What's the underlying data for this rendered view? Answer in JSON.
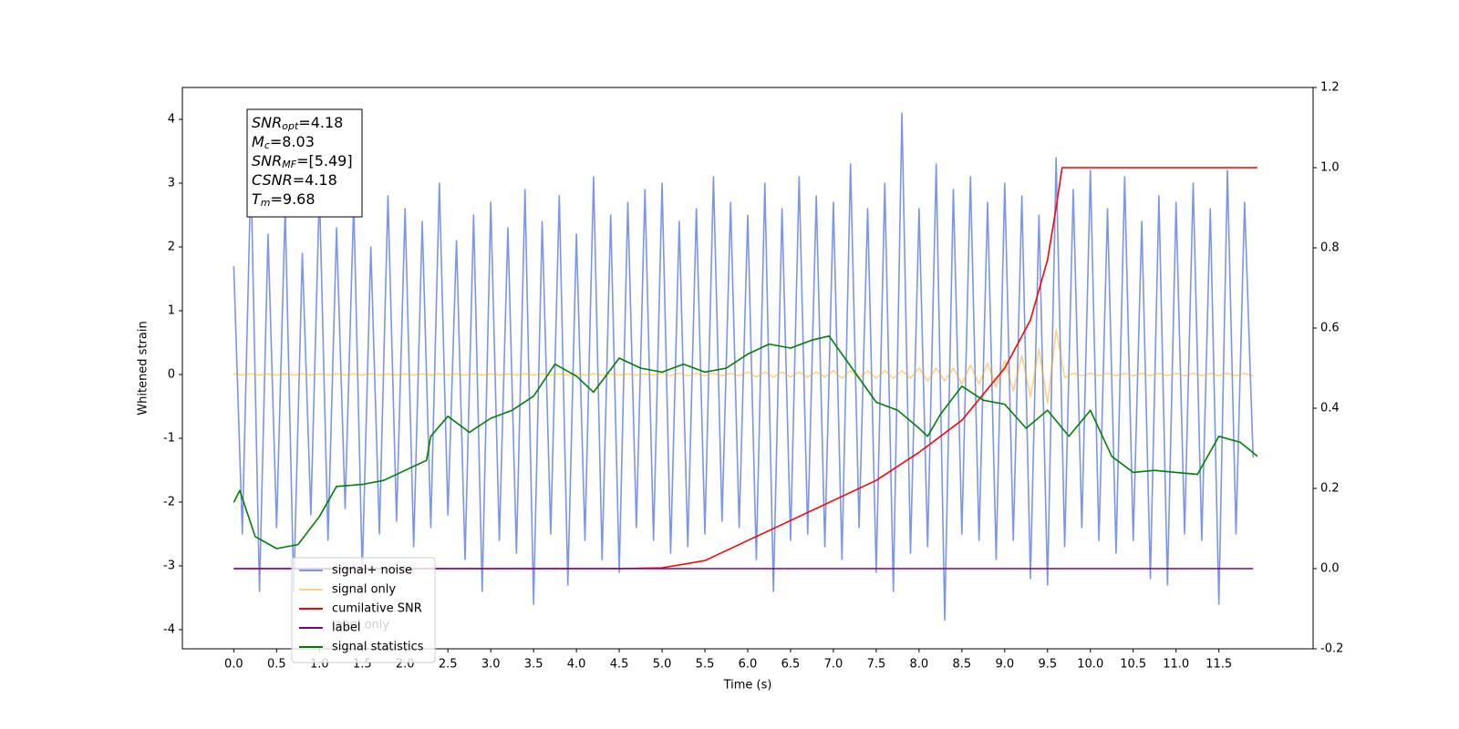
{
  "chart_data": {
    "type": "line",
    "xlabel": "Time (s)",
    "ylabel": "Whitened strain",
    "xlim": [
      -0.6,
      12.6
    ],
    "ylim": [
      -4.3,
      4.5
    ],
    "y2lim": [
      -0.2,
      1.2
    ],
    "xticks": [
      {
        "value": 0,
        "label": "0.0"
      },
      0.5,
      {
        "value": 1,
        "label": "1.0"
      },
      1.5,
      {
        "value": 2,
        "label": "2.0"
      },
      2.5,
      {
        "value": 3,
        "label": "3.0"
      },
      3.5,
      {
        "value": 4,
        "label": "4.0"
      },
      4.5,
      {
        "value": 5,
        "label": "5.0"
      },
      5.5,
      {
        "value": 6,
        "label": "6.0"
      },
      6.5,
      {
        "value": 7,
        "label": "7.0"
      },
      7.5,
      {
        "value": 8,
        "label": "8.0"
      },
      8.5,
      {
        "value": 9,
        "label": "9.0"
      },
      9.5,
      {
        "value": 10,
        "label": "10.0"
      },
      10.5,
      {
        "value": 11,
        "label": "11.0"
      },
      11.5
    ],
    "yticks": [
      -4,
      -3,
      -2,
      -1,
      0,
      1,
      2,
      3,
      4
    ],
    "y2ticks": [
      -0.2,
      {
        "value": 0,
        "label": "0.0"
      },
      0.2,
      0.4,
      0.6,
      0.8,
      {
        "value": 1,
        "label": "1.0"
      },
      1.2
    ],
    "x": [
      0,
      0.1,
      0.2,
      0.3,
      0.4,
      0.5,
      0.6,
      0.7,
      0.8,
      0.9,
      1,
      1.1,
      1.2,
      1.3,
      1.4,
      1.5,
      1.6,
      1.7,
      1.8,
      1.9,
      2,
      2.1,
      2.2,
      2.3,
      2.4,
      2.5,
      2.6,
      2.7,
      2.8,
      2.9,
      3,
      3.1,
      3.2,
      3.3,
      3.4,
      3.5,
      3.6,
      3.7,
      3.8,
      3.9,
      4,
      4.1,
      4.2,
      4.3,
      4.4,
      4.5,
      4.6,
      4.7,
      4.8,
      4.9,
      5,
      5.1,
      5.2,
      5.3,
      5.4,
      5.5,
      5.6,
      5.7,
      5.8,
      5.9,
      6,
      6.1,
      6.2,
      6.3,
      6.4,
      6.5,
      6.6,
      6.7,
      6.8,
      6.9,
      7,
      7.1,
      7.2,
      7.3,
      7.4,
      7.5,
      7.6,
      7.7,
      7.8,
      7.9,
      8,
      8.1,
      8.2,
      8.3,
      8.4,
      8.5,
      8.6,
      8.7,
      8.8,
      8.9,
      9,
      9.1,
      9.2,
      9.3,
      9.4,
      9.5,
      9.6,
      9.7,
      9.8,
      9.9,
      10,
      10.1,
      10.2,
      10.3,
      10.4,
      10.5,
      10.6,
      10.7,
      10.8,
      10.9,
      11,
      11.1,
      11.2,
      11.3,
      11.4,
      11.5,
      11.6,
      11.7,
      11.8,
      11.9
    ],
    "series": [
      {
        "name": "signal+ noise",
        "color": "#4169e1",
        "alpha": 0.7,
        "values": [
          1.7,
          -2.5,
          3.2,
          -3.4,
          2.2,
          -2.4,
          2.6,
          -3.4,
          1.9,
          -2.2,
          2.9,
          -2.6,
          2.3,
          -2.1,
          2.7,
          -3.1,
          2.0,
          -2.5,
          2.8,
          -2.3,
          2.6,
          -2.7,
          2.4,
          -2.4,
          3.0,
          -2.2,
          2.1,
          -2.9,
          2.5,
          -3.4,
          2.7,
          -2.6,
          2.3,
          -2.8,
          2.9,
          -3.6,
          2.4,
          -2.5,
          2.8,
          -3.3,
          2.2,
          -2.6,
          3.1,
          -2.9,
          2.5,
          -3.1,
          2.7,
          -2.4,
          2.9,
          -2.6,
          3.0,
          -2.8,
          2.4,
          -2.7,
          2.6,
          -2.5,
          3.1,
          -2.3,
          2.7,
          -2.4,
          2.5,
          -2.9,
          3.0,
          -3.4,
          2.6,
          -2.6,
          3.1,
          -2.5,
          2.8,
          -2.7,
          2.7,
          -2.9,
          3.3,
          -2.4,
          2.6,
          -3.1,
          3.0,
          -3.4,
          4.1,
          -2.8,
          2.6,
          -2.7,
          3.3,
          -3.85,
          2.9,
          -2.5,
          3.1,
          -2.6,
          2.7,
          -2.9,
          3.0,
          -2.6,
          2.8,
          -3.2,
          2.5,
          -3.3,
          3.4,
          -2.7,
          2.9,
          -2.4,
          3.2,
          -2.6,
          2.6,
          -2.8,
          3.1,
          -2.6,
          2.4,
          -3.2,
          2.8,
          -3.3,
          2.7,
          -2.5,
          3.0,
          -2.6,
          2.6,
          -3.6,
          3.2,
          -2.5,
          2.7,
          -1.3
        ]
      },
      {
        "name": "signal only",
        "color": "#ffa500",
        "alpha": 0.5,
        "values": [
          0.01,
          -0.01,
          0.01,
          -0.01,
          0.01,
          -0.01,
          0.01,
          -0.01,
          0.01,
          -0.01,
          0.01,
          -0.01,
          0.01,
          -0.01,
          0.01,
          -0.01,
          0.01,
          -0.01,
          0.01,
          -0.01,
          0.01,
          -0.01,
          0.01,
          -0.01,
          0.01,
          -0.01,
          0.01,
          -0.01,
          0.01,
          -0.01,
          0.01,
          -0.01,
          0.01,
          -0.01,
          0.01,
          -0.01,
          0.01,
          -0.01,
          0.01,
          -0.01,
          0.01,
          -0.01,
          0.01,
          -0.01,
          0.01,
          -0.01,
          0.01,
          -0.01,
          0.01,
          -0.01,
          0.02,
          -0.02,
          0.02,
          -0.02,
          0.02,
          -0.02,
          0.02,
          -0.02,
          0.02,
          -0.02,
          0.04,
          -0.04,
          0.04,
          -0.04,
          0.04,
          -0.04,
          0.04,
          -0.04,
          0.04,
          -0.04,
          0.06,
          -0.06,
          0.06,
          -0.06,
          0.06,
          -0.06,
          0.06,
          -0.06,
          0.06,
          -0.06,
          0.1,
          -0.1,
          0.1,
          -0.1,
          0.1,
          -0.15,
          0.15,
          -0.15,
          0.18,
          -0.2,
          0.22,
          -0.26,
          0.3,
          -0.35,
          0.4,
          -0.45,
          0.7,
          -0.05,
          0.02,
          -0.02,
          0.02,
          -0.02,
          0.02,
          -0.02,
          0.02,
          -0.02,
          0.02,
          -0.02,
          0.02,
          -0.02,
          0.02,
          -0.02,
          0.02,
          -0.02,
          0.02,
          -0.02,
          0.02,
          -0.02,
          0.02,
          -0.02
        ]
      },
      {
        "name": "cumilative SNR",
        "color": "#ff0000",
        "axis": "y2",
        "x": [
          0,
          4.5,
          5.0,
          5.5,
          6.0,
          6.5,
          7.0,
          7.5,
          8.0,
          8.5,
          9.0,
          9.3,
          9.5,
          9.6,
          9.67,
          11.95
        ],
        "values": [
          0,
          0,
          0.002,
          0.02,
          0.07,
          0.12,
          0.17,
          0.22,
          0.29,
          0.37,
          0.5,
          0.62,
          0.77,
          0.9,
          1.0,
          1.0
        ]
      },
      {
        "name": "label",
        "color": "#800080",
        "axis": "y2",
        "x": [
          0,
          11.9
        ],
        "values": [
          0,
          0
        ]
      },
      {
        "name": "signal statistics",
        "color": "#008000",
        "axis": "y2",
        "x": [
          0,
          0.07,
          0.25,
          0.5,
          0.75,
          1.0,
          1.2,
          1.5,
          1.75,
          2.0,
          2.25,
          2.3,
          2.5,
          2.75,
          3.0,
          3.25,
          3.5,
          3.75,
          4.0,
          4.2,
          4.5,
          4.75,
          5.0,
          5.25,
          5.5,
          5.75,
          6.0,
          6.25,
          6.5,
          6.75,
          6.95,
          7.25,
          7.5,
          7.75,
          8.0,
          8.1,
          8.25,
          8.5,
          8.75,
          9.0,
          9.25,
          9.5,
          9.75,
          10.0,
          10.25,
          10.5,
          10.75,
          11.0,
          11.25,
          11.5,
          11.75,
          11.95
        ],
        "values": [
          0.165,
          0.195,
          0.08,
          0.05,
          0.06,
          0.13,
          0.205,
          0.21,
          0.22,
          0.245,
          0.27,
          0.33,
          0.38,
          0.34,
          0.375,
          0.395,
          0.43,
          0.51,
          0.48,
          0.44,
          0.525,
          0.5,
          0.49,
          0.51,
          0.49,
          0.5,
          0.535,
          0.56,
          0.55,
          0.57,
          0.58,
          0.49,
          0.415,
          0.395,
          0.35,
          0.33,
          0.385,
          0.455,
          0.42,
          0.41,
          0.35,
          0.395,
          0.33,
          0.395,
          0.28,
          0.24,
          0.245,
          0.24,
          0.235,
          0.33,
          0.315,
          0.28
        ]
      }
    ],
    "annotations": [
      {
        "text": "label only"
      }
    ],
    "stats": [
      {
        "symbol": "SNR",
        "subscript": "opt",
        "text": "=4.18"
      },
      {
        "symbol": "M",
        "subscript": "c",
        "text": "=8.03"
      },
      {
        "symbol": "SNR",
        "subscript": "MF",
        "text": "=[5.49]"
      },
      {
        "symbol": "CSNR",
        "subscript": "",
        "text": "=4.18"
      },
      {
        "symbol": "T",
        "subscript": "m",
        "text": "=9.68"
      }
    ]
  }
}
